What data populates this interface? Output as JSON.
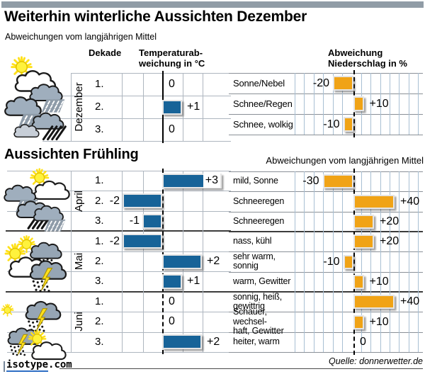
{
  "header": {
    "title": "Weiterhin winterliche Aussichten Dezember",
    "subtitle": "Abweichungen vom langjährigen Mittel"
  },
  "december": {
    "col_dekade": "Dekade",
    "col_temp": {
      "line1": "Temperaturab-",
      "line2": "weichung in °C"
    },
    "col_precip": {
      "line1": "Abweichung",
      "line2": "Niederschlag in %"
    }
  },
  "spring": {
    "title": "Aussichten Frühling",
    "subtitle": "Abweichungen vom langjährigen Mittel"
  },
  "footer": {
    "logo_text": "isotype",
    "logo_tld": ".com",
    "source": "Quelle: donnerwetter.de"
  },
  "colors": {
    "bar_blue": "#176398",
    "bar_orange": "#F0A316",
    "grid_left": "#AEB6BF",
    "grid_right": "#A8BFD3",
    "separator": "#8A9097",
    "separator_dark": "#3C3C3C",
    "topbar": "#909CA6",
    "logo_blue": "#2F6FC4"
  },
  "icons": {
    "december": [
      "sun-cloud-icon",
      "rain-cloud-icon",
      "rain-cloud-icon",
      "dark-rain-cloud-icon",
      "plain-cloud-icon"
    ],
    "april": [
      "sun-cloud-icon",
      "rain-cloud-icon",
      "dark-rain-cloud-icon",
      "rain-cloud-icon"
    ],
    "mai": [
      "sun-storm-cloud-icon",
      "sun-cloud-icon",
      "storm-cloud-icon"
    ],
    "juni": [
      "sun-icon",
      "storm-cloud-icon",
      "storm-cloud-icon",
      "sun-cloud-icon"
    ]
  },
  "chart_data": [
    {
      "id": "december-temperature",
      "type": "bar",
      "orientation": "horizontal",
      "title": "Temperaturabweichung in °C",
      "unit": "°C",
      "month": "Dezember",
      "categories": [
        "1.",
        "2.",
        "3."
      ],
      "values": [
        0,
        1,
        0
      ],
      "value_labels": [
        "0",
        "+1",
        "0"
      ],
      "xlim": [
        -4.5,
        3.5
      ],
      "axis_zero": true
    },
    {
      "id": "december-precipitation",
      "type": "bar",
      "orientation": "horizontal",
      "title": "Abweichung Niederschlag in %",
      "unit": "%",
      "categories": [
        "Sonne/Nebel",
        "Schnee/Regen",
        "Schnee, wolkig"
      ],
      "values": [
        -20,
        10,
        -10
      ],
      "value_labels": [
        "-20",
        "+10",
        "-10"
      ],
      "xlim": [
        -57,
        68
      ],
      "axis_zero": true
    },
    {
      "id": "spring-temperature",
      "type": "bar",
      "orientation": "horizontal",
      "title": "Temperaturabweichung in °C",
      "unit": "°C",
      "groups": [
        {
          "month": "April",
          "categories": [
            "1.",
            "2.",
            "3."
          ],
          "values": [
            3,
            -2,
            -1
          ],
          "value_labels": [
            "+3",
            "-2",
            "-1"
          ],
          "label_inside": [
            true,
            false,
            false
          ]
        },
        {
          "month": "Mai",
          "categories": [
            "1.",
            "2.",
            "3."
          ],
          "values": [
            -2,
            2,
            1
          ],
          "value_labels": [
            "-2",
            "+2",
            "+1"
          ],
          "label_inside": [
            false,
            false,
            false
          ]
        },
        {
          "month": "Juni",
          "categories": [
            "1.",
            "2.",
            "3."
          ],
          "values": [
            0,
            0,
            2
          ],
          "value_labels": [
            "0",
            "0",
            "+2"
          ],
          "label_inside": [
            false,
            false,
            false
          ]
        }
      ]
    },
    {
      "id": "spring-precipitation",
      "type": "bar",
      "orientation": "horizontal",
      "title": "Abweichung Niederschlag in %",
      "unit": "%",
      "rows": [
        {
          "label": "mild, Sonne",
          "value": -30,
          "value_label": "-30"
        },
        {
          "label": "Schneeregen",
          "value": 40,
          "value_label": "+40"
        },
        {
          "label": "Schneeregen",
          "value": 20,
          "value_label": "+20"
        },
        {
          "label": "nass, kühl",
          "value": 20,
          "value_label": "+20"
        },
        {
          "label": "sehr warm,\nsonnig",
          "value": -10,
          "value_label": "-10"
        },
        {
          "label": "warm, Gewitter",
          "value": 10,
          "value_label": "+10"
        },
        {
          "label": "sonnig, heiß,\ngewittrig",
          "value": 40,
          "value_label": "+40"
        },
        {
          "label": "Schauer, wechsel-\nhaft, Gewitter",
          "value": 10,
          "value_label": "+10"
        },
        {
          "label": "heiter, warm",
          "value": 0,
          "value_label": "0"
        }
      ],
      "group_separators_after": [
        3,
        6
      ]
    }
  ]
}
